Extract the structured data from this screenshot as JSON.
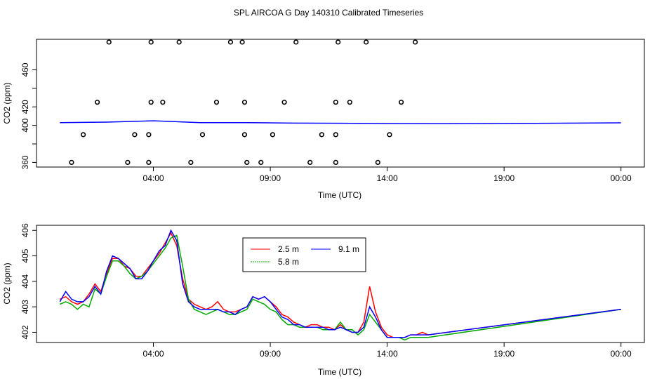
{
  "title": "SPL AIRCOA G  Day 140310  Calibrated Timeseries",
  "chart_data": [
    {
      "type": "scatter",
      "ylabel": "CO2 (ppm)",
      "xlabel": "Time (UTC)",
      "ylim": [
        355,
        493
      ],
      "xlim_hours": [
        -1,
        25
      ],
      "x_ticks": [
        4,
        9,
        14,
        19,
        24
      ],
      "x_tick_labels": [
        "04:00",
        "09:00",
        "14:00",
        "19:00",
        "00:00"
      ],
      "y_ticks": [
        360,
        380,
        400,
        420,
        440,
        460
      ],
      "y_tick_labels": [
        "360",
        "",
        "400",
        "420",
        "",
        "460"
      ],
      "points": {
        "x": [
          2.1,
          3.9,
          5.1,
          7.3,
          7.8,
          10.1,
          11.9,
          13.1,
          15.2,
          1.6,
          3.9,
          4.4,
          6.7,
          7.9,
          9.6,
          11.8,
          12.4,
          14.6,
          1.0,
          3.2,
          3.8,
          6.1,
          7.9,
          9.1,
          11.2,
          11.8,
          14.1,
          0.5,
          2.9,
          3.8,
          5.6,
          8.0,
          8.6,
          10.7,
          11.8,
          13.6
        ],
        "y": [
          490,
          490,
          490,
          490,
          490,
          490,
          490,
          490,
          490,
          425,
          425,
          425,
          425,
          425,
          425,
          425,
          425,
          425,
          390,
          390,
          390,
          390,
          390,
          390,
          390,
          390,
          390,
          360,
          360,
          360,
          360,
          360,
          360,
          360,
          360,
          360
        ]
      },
      "series": [
        {
          "name": "9.1 m",
          "color": "#0000ff",
          "x": [
            0,
            2,
            4,
            6,
            8,
            10,
            12,
            14,
            16,
            20,
            24
          ],
          "values": [
            403,
            403.5,
            405,
            403,
            403,
            402.5,
            402.3,
            402,
            401.8,
            402.2,
            402.8
          ]
        }
      ]
    },
    {
      "type": "line",
      "ylabel": "CO2 (ppm)",
      "xlabel": "Time (UTC)",
      "ylim": [
        401.6,
        406.2
      ],
      "xlim_hours": [
        -1,
        25
      ],
      "x_ticks": [
        4,
        9,
        14,
        19,
        24
      ],
      "x_tick_labels": [
        "04:00",
        "09:00",
        "14:00",
        "19:00",
        "00:00"
      ],
      "y_ticks": [
        402,
        403,
        404,
        405,
        406
      ],
      "y_tick_labels": [
        "402",
        "403",
        "404",
        "405",
        "406"
      ],
      "legend": {
        "location": "top-center",
        "entries": [
          "2.5 m",
          "9.1 m",
          "5.8 m"
        ]
      },
      "x": [
        0.0,
        0.25,
        0.5,
        0.75,
        1.0,
        1.25,
        1.5,
        1.75,
        2.0,
        2.25,
        2.5,
        2.75,
        3.0,
        3.25,
        3.5,
        3.75,
        4.0,
        4.25,
        4.5,
        4.75,
        5.0,
        5.25,
        5.5,
        5.75,
        6.0,
        6.25,
        6.5,
        6.75,
        7.0,
        7.25,
        7.5,
        7.75,
        8.0,
        8.25,
        8.5,
        8.75,
        9.0,
        9.25,
        9.5,
        9.75,
        10.0,
        10.25,
        10.5,
        10.75,
        11.0,
        11.25,
        11.5,
        11.75,
        12.0,
        12.25,
        12.5,
        12.75,
        13.0,
        13.25,
        13.5,
        13.75,
        14.0,
        14.25,
        14.5,
        14.75,
        15.0,
        15.25,
        15.5,
        15.75,
        24.0
      ],
      "series": [
        {
          "name": "2.5 m",
          "color": "#ff0000",
          "values": [
            403.3,
            403.4,
            403.2,
            403.1,
            403.2,
            403.5,
            403.9,
            403.6,
            404.3,
            404.9,
            404.9,
            404.6,
            404.5,
            404.2,
            404.2,
            404.5,
            404.8,
            405.1,
            405.5,
            405.9,
            405.4,
            404.1,
            403.3,
            403.1,
            403.0,
            402.9,
            403.0,
            403.2,
            402.9,
            402.8,
            402.8,
            402.9,
            403.0,
            403.4,
            403.3,
            403.4,
            403.2,
            403.0,
            402.7,
            402.6,
            402.4,
            402.3,
            402.2,
            402.3,
            402.3,
            402.2,
            402.2,
            402.1,
            402.3,
            402.1,
            402.0,
            402.0,
            402.4,
            403.8,
            402.8,
            402.2,
            401.9,
            401.8,
            401.8,
            401.8,
            401.9,
            401.9,
            402.0,
            401.9,
            402.9
          ]
        },
        {
          "name": "5.8 m",
          "color": "#00aa00",
          "values": [
            403.1,
            403.2,
            403.1,
            402.9,
            403.1,
            403.0,
            403.7,
            403.5,
            404.2,
            404.8,
            404.8,
            404.6,
            404.3,
            404.1,
            404.2,
            404.4,
            404.7,
            405.0,
            405.3,
            405.7,
            405.8,
            404.6,
            403.3,
            402.9,
            402.8,
            402.7,
            402.8,
            402.9,
            402.8,
            402.7,
            402.7,
            402.8,
            402.9,
            403.3,
            403.2,
            403.1,
            402.9,
            402.8,
            402.5,
            402.3,
            402.3,
            402.2,
            402.2,
            402.2,
            402.2,
            402.1,
            402.1,
            402.1,
            402.4,
            402.1,
            402.1,
            401.9,
            402.1,
            402.7,
            402.4,
            402.1,
            401.8,
            401.8,
            401.8,
            401.7,
            401.8,
            401.8,
            401.8,
            401.8,
            402.9
          ]
        },
        {
          "name": "9.1 m",
          "color": "#0000ff",
          "values": [
            403.2,
            403.6,
            403.3,
            403.2,
            403.2,
            403.4,
            403.8,
            403.5,
            404.4,
            405.0,
            404.9,
            404.7,
            404.5,
            404.1,
            404.1,
            404.4,
            404.8,
            405.2,
            405.4,
            406.0,
            405.6,
            403.9,
            403.2,
            403.0,
            402.9,
            402.9,
            402.9,
            402.9,
            402.8,
            402.8,
            402.7,
            402.9,
            403.0,
            403.4,
            403.3,
            403.4,
            403.2,
            402.9,
            402.6,
            402.5,
            402.3,
            402.3,
            402.2,
            402.2,
            402.2,
            402.2,
            402.1,
            402.1,
            402.2,
            402.1,
            402.0,
            402.0,
            402.2,
            403.0,
            402.6,
            402.1,
            401.8,
            401.8,
            401.8,
            401.8,
            401.9,
            401.9,
            401.9,
            401.9,
            402.9
          ]
        }
      ]
    }
  ]
}
